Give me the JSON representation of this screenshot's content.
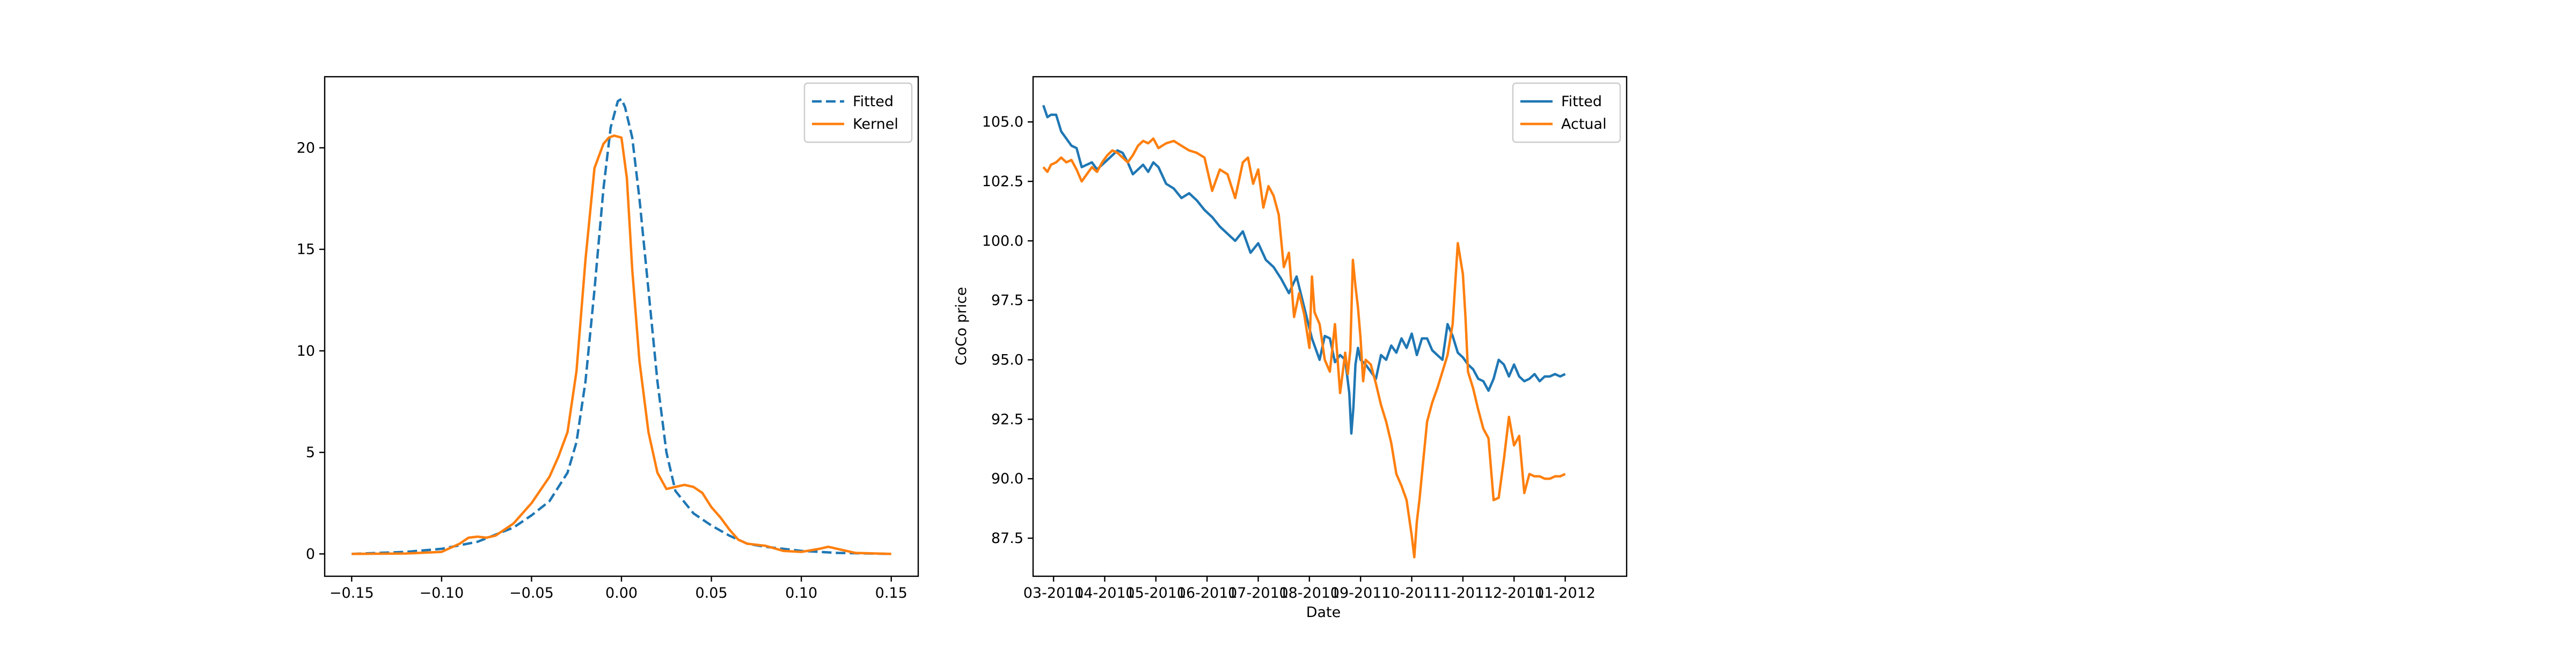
{
  "colors": {
    "blue": "#1f77b4",
    "orange": "#ff7f0e"
  },
  "chart_data": [
    {
      "type": "line",
      "title": "",
      "xlabel": "",
      "ylabel": "",
      "xlim": [
        -0.165,
        0.165
      ],
      "ylim": [
        -1.1,
        23.5
      ],
      "xticks": [
        -0.15,
        -0.1,
        -0.05,
        0.0,
        0.05,
        0.1,
        0.15
      ],
      "xtick_labels": [
        "−0.15",
        "−0.10",
        "−0.05",
        "0.00",
        "0.05",
        "0.10",
        "0.15"
      ],
      "yticks": [
        0,
        5,
        10,
        15,
        20
      ],
      "ytick_labels": [
        "0",
        "5",
        "10",
        "15",
        "20"
      ],
      "legend_position": "top-right",
      "grid": false,
      "series": [
        {
          "name": "Fitted",
          "style": "dashed",
          "color": "#1f77b4",
          "x": [
            -0.15,
            -0.12,
            -0.1,
            -0.08,
            -0.06,
            -0.05,
            -0.04,
            -0.03,
            -0.025,
            -0.02,
            -0.015,
            -0.01,
            -0.006,
            -0.002,
            0.0,
            0.002,
            0.006,
            0.01,
            0.015,
            0.02,
            0.025,
            0.03,
            0.04,
            0.05,
            0.06,
            0.07,
            0.08,
            0.1,
            0.12,
            0.15
          ],
          "y": [
            0.0,
            0.1,
            0.25,
            0.6,
            1.3,
            1.9,
            2.6,
            4.0,
            5.5,
            8.5,
            13.0,
            18.0,
            21.0,
            22.3,
            22.4,
            22.0,
            20.5,
            17.5,
            13.0,
            8.5,
            5.0,
            3.1,
            2.0,
            1.4,
            0.9,
            0.5,
            0.35,
            0.15,
            0.05,
            0.0
          ]
        },
        {
          "name": "Kernel",
          "style": "solid",
          "color": "#ff7f0e",
          "x": [
            -0.15,
            -0.12,
            -0.1,
            -0.09,
            -0.085,
            -0.08,
            -0.075,
            -0.07,
            -0.06,
            -0.05,
            -0.04,
            -0.035,
            -0.03,
            -0.025,
            -0.02,
            -0.015,
            -0.01,
            -0.007,
            -0.004,
            0.0,
            0.003,
            0.006,
            0.01,
            0.015,
            0.02,
            0.025,
            0.03,
            0.035,
            0.04,
            0.045,
            0.05,
            0.055,
            0.06,
            0.065,
            0.07,
            0.08,
            0.09,
            0.1,
            0.11,
            0.115,
            0.12,
            0.13,
            0.15
          ],
          "y": [
            0.0,
            0.02,
            0.1,
            0.5,
            0.8,
            0.85,
            0.8,
            0.9,
            1.5,
            2.5,
            3.8,
            4.8,
            6.0,
            9.0,
            14.5,
            19.0,
            20.2,
            20.5,
            20.6,
            20.5,
            18.5,
            14.0,
            9.5,
            6.0,
            4.0,
            3.2,
            3.3,
            3.4,
            3.3,
            3.0,
            2.3,
            1.8,
            1.2,
            0.7,
            0.5,
            0.4,
            0.15,
            0.1,
            0.25,
            0.35,
            0.25,
            0.05,
            0.0
          ]
        }
      ]
    },
    {
      "type": "line",
      "title": "",
      "xlabel": "Date",
      "ylabel": "CoCo price",
      "xlim": [
        -0.4,
        11.2
      ],
      "ylim": [
        85.9,
        106.9
      ],
      "xticks": [
        0,
        1,
        2,
        3,
        4,
        5,
        6,
        7,
        8,
        9,
        10
      ],
      "xtick_labels": [
        "03-2011",
        "04-2011",
        "05-2011",
        "06-2011",
        "07-2011",
        "08-2011",
        "09-2011",
        "10-2011",
        "11-2011",
        "12-2011",
        "01-2012"
      ],
      "yticks": [
        87.5,
        90.0,
        92.5,
        95.0,
        97.5,
        100.0,
        102.5,
        105.0
      ],
      "ytick_labels": [
        "87.5",
        "90.0",
        "92.5",
        "95.0",
        "97.5",
        "100.0",
        "102.5",
        "105.0"
      ],
      "legend_position": "top-right",
      "grid": false,
      "series": [
        {
          "name": "Fitted",
          "style": "solid",
          "color": "#1f77b4",
          "x": [
            -0.2,
            -0.12,
            -0.05,
            0.05,
            0.15,
            0.25,
            0.35,
            0.45,
            0.55,
            0.65,
            0.75,
            0.85,
            0.95,
            1.05,
            1.15,
            1.25,
            1.35,
            1.45,
            1.55,
            1.65,
            1.75,
            1.85,
            1.95,
            2.05,
            2.2,
            2.35,
            2.5,
            2.65,
            2.8,
            2.95,
            3.1,
            3.25,
            3.4,
            3.55,
            3.7,
            3.85,
            4.0,
            4.15,
            4.3,
            4.45,
            4.6,
            4.75,
            4.9,
            5.05,
            5.2,
            5.3,
            5.4,
            5.5,
            5.6,
            5.7,
            5.78,
            5.82,
            5.86,
            5.9,
            5.95,
            6.0,
            6.1,
            6.2,
            6.3,
            6.4,
            6.5,
            6.6,
            6.7,
            6.8,
            6.9,
            7.0,
            7.1,
            7.2,
            7.3,
            7.4,
            7.5,
            7.6,
            7.7,
            7.8,
            7.9,
            8.0,
            8.1,
            8.2,
            8.3,
            8.4,
            8.5,
            8.6,
            8.7,
            8.8,
            8.9,
            9.0,
            9.1,
            9.2,
            9.3,
            9.4,
            9.5,
            9.6,
            9.7,
            9.8,
            9.9,
            10.0
          ],
          "y": [
            105.7,
            105.2,
            105.3,
            105.3,
            104.6,
            104.3,
            104.0,
            103.9,
            103.1,
            103.2,
            103.3,
            103.0,
            103.2,
            103.4,
            103.6,
            103.8,
            103.7,
            103.3,
            102.8,
            103.0,
            103.2,
            102.9,
            103.3,
            103.1,
            102.4,
            102.2,
            101.8,
            102.0,
            101.7,
            101.3,
            101.0,
            100.6,
            100.3,
            100.0,
            100.4,
            99.5,
            99.9,
            99.2,
            98.9,
            98.4,
            97.8,
            98.5,
            97.2,
            95.9,
            95.0,
            96.0,
            95.9,
            94.9,
            95.2,
            95.0,
            93.6,
            91.9,
            93.0,
            94.8,
            95.5,
            95.0,
            94.8,
            94.5,
            94.2,
            95.2,
            95.0,
            95.6,
            95.3,
            95.9,
            95.5,
            96.1,
            95.2,
            95.9,
            95.9,
            95.4,
            95.2,
            95.0,
            96.5,
            96.0,
            95.3,
            95.1,
            94.8,
            94.6,
            94.2,
            94.1,
            93.7,
            94.2,
            95.0,
            94.8,
            94.3,
            94.8,
            94.3,
            94.1,
            94.2,
            94.4,
            94.1,
            94.3,
            94.3,
            94.4,
            94.3,
            94.4
          ]
        },
        {
          "name": "Actual",
          "style": "solid",
          "color": "#ff7f0e",
          "x": [
            -0.2,
            -0.12,
            -0.05,
            0.05,
            0.15,
            0.25,
            0.35,
            0.45,
            0.55,
            0.65,
            0.75,
            0.85,
            0.95,
            1.05,
            1.15,
            1.25,
            1.35,
            1.45,
            1.55,
            1.65,
            1.75,
            1.85,
            1.95,
            2.05,
            2.2,
            2.35,
            2.5,
            2.65,
            2.8,
            2.95,
            3.1,
            3.25,
            3.4,
            3.55,
            3.7,
            3.8,
            3.9,
            4.0,
            4.1,
            4.2,
            4.3,
            4.4,
            4.5,
            4.6,
            4.7,
            4.8,
            4.9,
            5.0,
            5.05,
            5.1,
            5.2,
            5.3,
            5.4,
            5.5,
            5.6,
            5.7,
            5.75,
            5.8,
            5.85,
            5.9,
            5.95,
            6.0,
            6.05,
            6.1,
            6.2,
            6.3,
            6.4,
            6.5,
            6.6,
            6.7,
            6.8,
            6.9,
            7.0,
            7.05,
            7.1,
            7.15,
            7.2,
            7.3,
            7.4,
            7.5,
            7.6,
            7.7,
            7.8,
            7.9,
            8.0,
            8.05,
            8.1,
            8.2,
            8.3,
            8.4,
            8.5,
            8.6,
            8.7,
            8.8,
            8.9,
            9.0,
            9.1,
            9.2,
            9.3,
            9.4,
            9.5,
            9.6,
            9.7,
            9.8,
            9.9,
            10.0
          ],
          "y": [
            103.1,
            102.9,
            103.2,
            103.3,
            103.5,
            103.3,
            103.4,
            103.0,
            102.5,
            102.8,
            103.1,
            102.9,
            103.3,
            103.6,
            103.8,
            103.7,
            103.5,
            103.3,
            103.6,
            104.0,
            104.2,
            104.1,
            104.3,
            103.9,
            104.1,
            104.2,
            104.0,
            103.8,
            103.7,
            103.5,
            102.1,
            103.0,
            102.8,
            101.8,
            103.3,
            103.5,
            102.4,
            103.0,
            101.4,
            102.3,
            101.9,
            101.1,
            98.9,
            99.5,
            96.8,
            97.8,
            96.9,
            95.5,
            98.5,
            97.0,
            96.5,
            95.0,
            94.5,
            96.5,
            93.6,
            95.3,
            94.4,
            95.4,
            99.2,
            98.1,
            97.2,
            95.9,
            94.1,
            95.0,
            94.8,
            94.0,
            93.1,
            92.4,
            91.5,
            90.2,
            89.7,
            89.1,
            87.6,
            86.7,
            88.2,
            89.1,
            90.2,
            92.4,
            93.2,
            93.8,
            94.5,
            95.2,
            96.5,
            99.9,
            98.6,
            96.8,
            94.5,
            93.8,
            92.9,
            92.1,
            91.7,
            89.1,
            89.2,
            90.8,
            92.6,
            91.4,
            91.8,
            89.4,
            90.2,
            90.1,
            90.1,
            90.0,
            90.0,
            90.1,
            90.1,
            90.2
          ]
        }
      ]
    }
  ]
}
